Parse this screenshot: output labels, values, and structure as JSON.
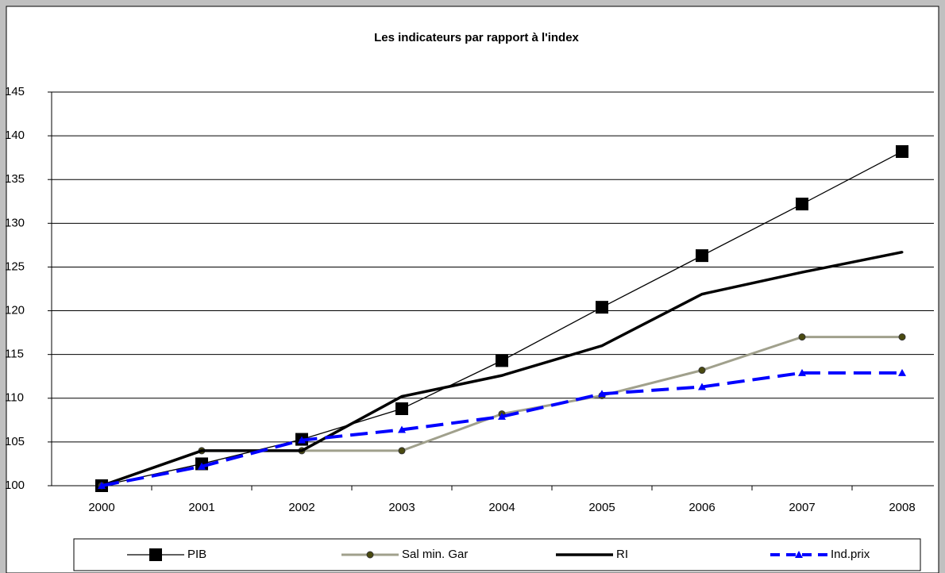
{
  "chart_data": {
    "type": "line",
    "title": "Les indicateurs par rapport à l'index",
    "categories": [
      "2000",
      "2001",
      "2002",
      "2003",
      "2004",
      "2005",
      "2006",
      "2007",
      "2008"
    ],
    "series": [
      {
        "name": "PIB",
        "color": "#000000",
        "values": [
          100,
          102.5,
          105.3,
          108.8,
          114.3,
          120.4,
          126.3,
          132.2,
          138.2
        ]
      },
      {
        "name": "Sal min. Gar",
        "color": "#a0a08c",
        "values": [
          100,
          104,
          104,
          104,
          108.2,
          110.3,
          113.2,
          117.0,
          117.0
        ]
      },
      {
        "name": "RI",
        "color": "#000000",
        "values": [
          100,
          104,
          104,
          110.2,
          112.6,
          116.0,
          121.9,
          124.4,
          126.7
        ]
      },
      {
        "name": "Ind.prix",
        "color": "#0000ff",
        "values": [
          100,
          102.2,
          105.2,
          106.4,
          107.9,
          110.5,
          111.3,
          112.9,
          112.9
        ]
      }
    ],
    "ylim": [
      100,
      145
    ],
    "yticks": [
      100,
      105,
      110,
      115,
      120,
      125,
      130,
      135,
      140,
      145
    ],
    "grid": true,
    "legend": "bottom"
  }
}
